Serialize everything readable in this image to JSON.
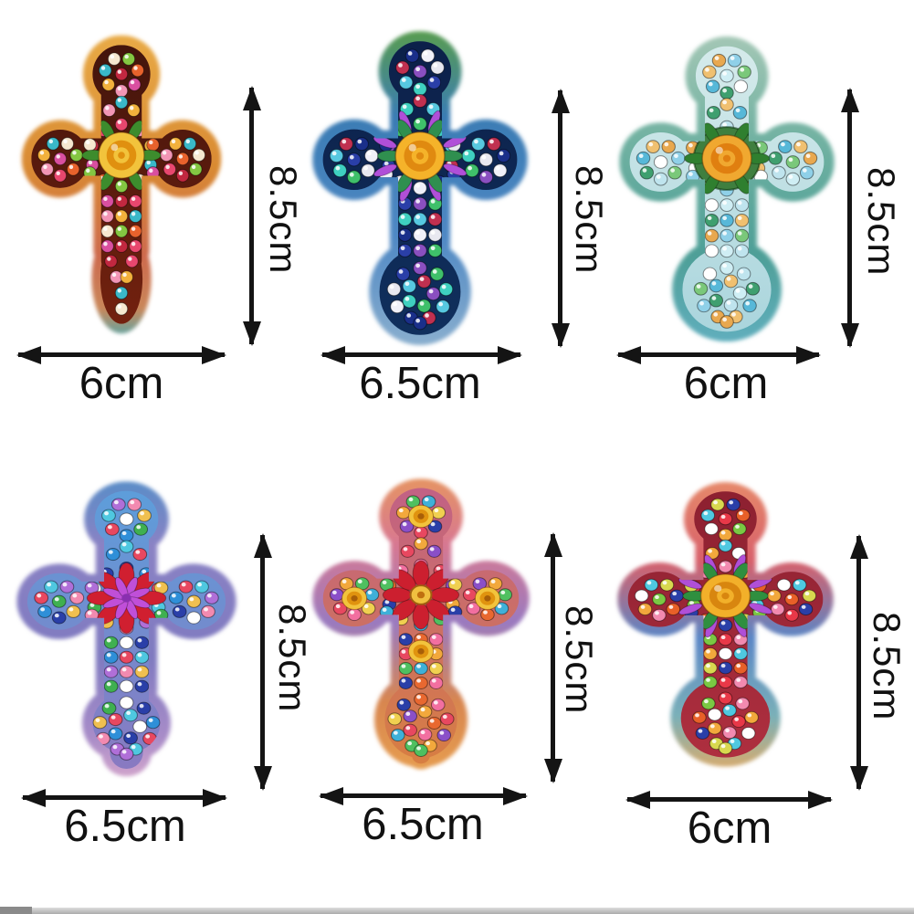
{
  "page": {
    "background": "#ffffff",
    "bottom_strip": {
      "left_color": "#8a8a8a",
      "main_color": "#c7c7c7"
    }
  },
  "crosses": [
    {
      "name": "orange-red-diamond-cross",
      "height_label": "8.5cm",
      "width_label": "6cm",
      "shape": "taper",
      "halo": [
        [
          "0",
          "#eaae48"
        ],
        [
          "0.45",
          "#d98a33"
        ],
        [
          "0.72",
          "#cd6a4d"
        ],
        [
          "0.88",
          "#c9875a"
        ],
        [
          "1",
          "#35b2c2"
        ]
      ],
      "inner": [
        "#40140c",
        "#76220f"
      ],
      "beads": [
        "#e8476e",
        "#f2b13c",
        "#f6e8d0",
        "#e8622c",
        "#c22840",
        "#f295b5",
        "#3ab8c8",
        "#84c742",
        "#d94fa0"
      ],
      "flower": {
        "type": "rose",
        "petal": "#f2c33c",
        "core": "#e0900f",
        "leaf": "#3d8c2d"
      }
    },
    {
      "name": "blue-green-diamond-cross",
      "height_label": "8.5cm",
      "width_label": "6.5cm",
      "shape": "bell",
      "halo": [
        [
          "0",
          "#5da23c"
        ],
        [
          "0.3",
          "#3a7cb4"
        ],
        [
          "0.65",
          "#4f88c4"
        ],
        [
          "1",
          "#8fb2cf"
        ]
      ],
      "inner": [
        "#0c1f48",
        "#10305e"
      ],
      "beads": [
        "#2a3fa8",
        "#3fc06a",
        "#57c8e0",
        "#1a2f8a",
        "#e8e8f0",
        "#8a4fc0",
        "#3fd0c0",
        "#c03050",
        "#f0f0f8"
      ],
      "flower": {
        "type": "rose",
        "petal": "#f5b32a",
        "core": "#e08a10",
        "leaf": "#2f8f4f",
        "accent": "#b04fd8"
      }
    },
    {
      "name": "teal-mandala-diamond-cross",
      "height_label": "8.5cm",
      "width_label": "6cm",
      "shape": "round",
      "halo": [
        [
          "0",
          "#abcab8"
        ],
        [
          "0.35",
          "#72b2a2"
        ],
        [
          "0.7",
          "#4e9f97"
        ],
        [
          "1",
          "#62b0c2"
        ]
      ],
      "inner": [
        "#d8ecec",
        "#a8d4dc"
      ],
      "beads": [
        "#8fd0e8",
        "#ffffff",
        "#bfe4ee",
        "#57b8d8",
        "#e8a84f",
        "#7ac87a",
        "#cfeef4",
        "#3f9f6f",
        "#f0c070"
      ],
      "flower": {
        "type": "rose",
        "petal": "#f0a830",
        "core": "#e07f10",
        "leaf": "#2f7f2f",
        "ring": "#3f7f3f"
      }
    },
    {
      "name": "purple-blue-diamond-cross",
      "height_label": "8.5cm",
      "width_label": "6.5cm",
      "shape": "lobed",
      "halo": [
        [
          "0",
          "#4f8fc8"
        ],
        [
          "0.25",
          "#8a82c4"
        ],
        [
          "0.6",
          "#7f7ac0"
        ],
        [
          "0.85",
          "#a88cc8"
        ],
        [
          "1",
          "#d8a8cc"
        ]
      ],
      "inner": [
        "#5aa0dc",
        "#8a78c0"
      ],
      "beads": [
        "#4fc8e0",
        "#f28ab0",
        "#3fb050",
        "#2a3fa8",
        "#e84860",
        "#b06fd8",
        "#f0c050",
        "#ffffff",
        "#2f8fd8"
      ],
      "flower": {
        "type": "pinwheel",
        "petal": "#d01f30",
        "pin": "#c04fd8",
        "core": "#8a2fb0"
      }
    },
    {
      "name": "rainbow-rose-diamond-cross",
      "height_label": "8.5cm",
      "width_label": "6.5cm",
      "shape": "flare",
      "halo": [
        [
          "0",
          "#e89a58"
        ],
        [
          "0.25",
          "#d87890"
        ],
        [
          "0.5",
          "#9a7ac0"
        ],
        [
          "0.75",
          "#d8864f"
        ],
        [
          "1",
          "#e8a050"
        ]
      ],
      "inner": [
        "#c05f8a",
        "#d87f3f"
      ],
      "beads": [
        "#e84860",
        "#f2a83c",
        "#3fb0d8",
        "#2a3fa8",
        "#f26fa0",
        "#8a4fc8",
        "#4fc060",
        "#f0d050",
        "#e86830"
      ],
      "flower": {
        "type": "petalflower",
        "petal": "#cc1f2f",
        "core": "#f0c040",
        "lobe_roses": true
      }
    },
    {
      "name": "red-multicolor-diamond-cross",
      "height_label": "8.5cm",
      "width_label": "6cm",
      "shape": "round",
      "halo": [
        [
          "0",
          "#e8906a"
        ],
        [
          "0.3",
          "#d8606a"
        ],
        [
          "0.55",
          "#5a86c6"
        ],
        [
          "0.8",
          "#7ab0b8"
        ],
        [
          "1",
          "#e8aa5f"
        ]
      ],
      "inner": [
        "#8a1f2f",
        "#b03040"
      ],
      "beads": [
        "#e83848",
        "#f2a83c",
        "#4fc8e0",
        "#2a3fa8",
        "#7ac843",
        "#f28ab0",
        "#ffffff",
        "#d8d84f",
        "#e86028"
      ],
      "flower": {
        "type": "rose",
        "petal": "#f2b02a",
        "core": "#d8860f",
        "leaf": "#2f8f3f",
        "accent": "#b04fd8"
      }
    }
  ]
}
